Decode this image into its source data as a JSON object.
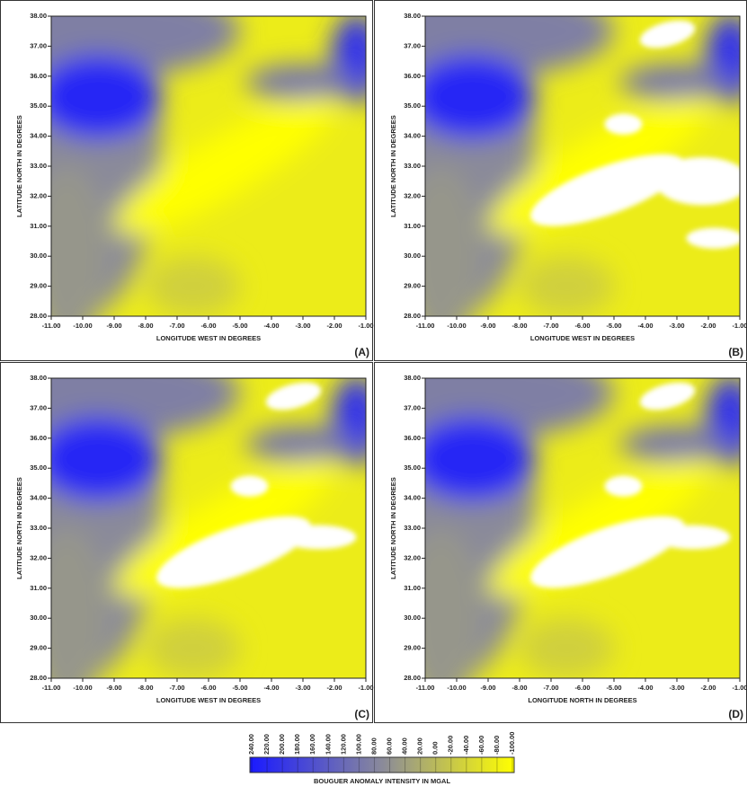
{
  "chart_data": [
    {
      "type": "contour",
      "panel_label": "(A)",
      "x_label": "LONGITUDE WEST IN DEGREES",
      "y_label": "LATITUDE NORTH IN DEGREES",
      "xlim": [
        -11,
        -1
      ],
      "ylim": [
        28,
        38
      ],
      "xticks": [
        {
          "value": -11,
          "label": "-11.00"
        },
        {
          "value": -10,
          "label": "-10.00"
        },
        {
          "value": -9,
          "label": "-9.00"
        },
        {
          "value": -8,
          "label": "-8.00"
        },
        {
          "value": -7,
          "label": "-7.00"
        },
        {
          "value": -6,
          "label": "-6.00"
        },
        {
          "value": -5,
          "label": "-5.00"
        },
        {
          "value": -4,
          "label": "-4.00"
        },
        {
          "value": -3,
          "label": "-3.00"
        },
        {
          "value": -2,
          "label": "-2.00"
        },
        {
          "value": -1,
          "label": "-1.00"
        }
      ],
      "yticks": [
        {
          "value": 28,
          "label": "28.00"
        },
        {
          "value": 29,
          "label": "29.00"
        },
        {
          "value": 30,
          "label": "30.00"
        },
        {
          "value": 31,
          "label": "31.00"
        },
        {
          "value": 32,
          "label": "32.00"
        },
        {
          "value": 33,
          "label": "33.00"
        },
        {
          "value": 34,
          "label": "34.00"
        },
        {
          "value": 35,
          "label": "35.00"
        },
        {
          "value": 36,
          "label": "36.00"
        },
        {
          "value": 37,
          "label": "37.00"
        },
        {
          "value": 38,
          "label": "38.00"
        }
      ]
    },
    {
      "type": "contour",
      "panel_label": "(B)",
      "x_label": "LONGITUDE WEST IN DEGREES",
      "y_label": "LATITUDE NORTH IN DEGREES",
      "xlim": [
        -11,
        -1
      ],
      "ylim": [
        28,
        38
      ],
      "xticks": [
        {
          "value": -11,
          "label": "-11.00"
        },
        {
          "value": -10,
          "label": "-10.00"
        },
        {
          "value": -9,
          "label": "-9.00"
        },
        {
          "value": -8,
          "label": "-8.00"
        },
        {
          "value": -7,
          "label": "-7.00"
        },
        {
          "value": -6,
          "label": "-6.00"
        },
        {
          "value": -5,
          "label": "-5.00"
        },
        {
          "value": -4,
          "label": "-4.00"
        },
        {
          "value": -3,
          "label": "-3.00"
        },
        {
          "value": -2,
          "label": "-2.00"
        },
        {
          "value": -1,
          "label": "-1.00"
        }
      ],
      "yticks": [
        {
          "value": 28,
          "label": "28.00"
        },
        {
          "value": 29,
          "label": "29.00"
        },
        {
          "value": 30,
          "label": "30.00"
        },
        {
          "value": 31,
          "label": "31.00"
        },
        {
          "value": 32,
          "label": "32.00"
        },
        {
          "value": 33,
          "label": "33.00"
        },
        {
          "value": 34,
          "label": "34.00"
        },
        {
          "value": 35,
          "label": "35.00"
        },
        {
          "value": 36,
          "label": "36.00"
        },
        {
          "value": 37,
          "label": "37.00"
        },
        {
          "value": 38,
          "label": "38.00"
        }
      ]
    },
    {
      "type": "contour",
      "panel_label": "(C)",
      "x_label": "LONGITUDE WEST IN DEGREES",
      "y_label": "LATITUDE NORTH IN DEGREES",
      "xlim": [
        -11,
        -1
      ],
      "ylim": [
        28,
        38
      ],
      "xticks": [
        {
          "value": -11,
          "label": "-11.00"
        },
        {
          "value": -10,
          "label": "-10.00"
        },
        {
          "value": -9,
          "label": "-9.00"
        },
        {
          "value": -8,
          "label": "-8.00"
        },
        {
          "value": -7,
          "label": "-7.00"
        },
        {
          "value": -6,
          "label": "-6.00"
        },
        {
          "value": -5,
          "label": "-5.00"
        },
        {
          "value": -4,
          "label": "-4.00"
        },
        {
          "value": -3,
          "label": "-3.00"
        },
        {
          "value": -2,
          "label": "-2.00"
        },
        {
          "value": -1,
          "label": "-1.00"
        }
      ],
      "yticks": [
        {
          "value": 28,
          "label": "28.00"
        },
        {
          "value": 29,
          "label": "29.00"
        },
        {
          "value": 30,
          "label": "30.00"
        },
        {
          "value": 31,
          "label": "31.00"
        },
        {
          "value": 32,
          "label": "32.00"
        },
        {
          "value": 33,
          "label": "33.00"
        },
        {
          "value": 34,
          "label": "34.00"
        },
        {
          "value": 35,
          "label": "35.00"
        },
        {
          "value": 36,
          "label": "36.00"
        },
        {
          "value": 37,
          "label": "37.00"
        },
        {
          "value": 38,
          "label": "38.00"
        }
      ]
    },
    {
      "type": "contour",
      "panel_label": "(D)",
      "x_label": "LONGITUDE NORTH IN DEGREES",
      "y_label": "LATITUDE NORTH IN DEGREES",
      "xlim": [
        -11,
        -1
      ],
      "ylim": [
        28,
        38
      ],
      "xticks": [
        {
          "value": -11,
          "label": "-11.00"
        },
        {
          "value": -10,
          "label": "-10.00"
        },
        {
          "value": -9,
          "label": "-9.00"
        },
        {
          "value": -8,
          "label": "-8.00"
        },
        {
          "value": -7,
          "label": "-7.00"
        },
        {
          "value": -6,
          "label": "-6.00"
        },
        {
          "value": -5,
          "label": "-5.00"
        },
        {
          "value": -4,
          "label": "-4.00"
        },
        {
          "value": -3,
          "label": "-3.00"
        },
        {
          "value": -2,
          "label": "-2.00"
        },
        {
          "value": -1,
          "label": "-1.00"
        }
      ],
      "yticks": [
        {
          "value": 28,
          "label": "28.00"
        },
        {
          "value": 29,
          "label": "29.00"
        },
        {
          "value": 30,
          "label": "30.00"
        },
        {
          "value": 31,
          "label": "31.00"
        },
        {
          "value": 32,
          "label": "32.00"
        },
        {
          "value": 33,
          "label": "33.00"
        },
        {
          "value": 34,
          "label": "34.00"
        },
        {
          "value": 35,
          "label": "35.00"
        },
        {
          "value": 36,
          "label": "36.00"
        },
        {
          "value": 37,
          "label": "37.00"
        },
        {
          "value": 38,
          "label": "38.00"
        }
      ]
    }
  ],
  "colorbar": {
    "title": "BOUGUER ANOMALY INTENSITY IN MGAL",
    "colors": [
      "#1a1aff",
      "#8a8a9a",
      "#ffff00"
    ],
    "ticks": [
      {
        "value": 240,
        "label": "240.00"
      },
      {
        "value": 220,
        "label": "220.00"
      },
      {
        "value": 200,
        "label": "200.00"
      },
      {
        "value": 180,
        "label": "180.00"
      },
      {
        "value": 160,
        "label": "160.00"
      },
      {
        "value": 140,
        "label": "140.00"
      },
      {
        "value": 120,
        "label": "120.00"
      },
      {
        "value": 100,
        "label": "100.00"
      },
      {
        "value": 80,
        "label": "80.00"
      },
      {
        "value": 60,
        "label": "60.00"
      },
      {
        "value": 40,
        "label": "40.00"
      },
      {
        "value": 20,
        "label": "20.00"
      },
      {
        "value": 0,
        "label": "0.00"
      },
      {
        "value": -20,
        "label": "-20.00"
      },
      {
        "value": -40,
        "label": "-40.00"
      },
      {
        "value": -60,
        "label": "-60.00"
      },
      {
        "value": -80,
        "label": "-80.00"
      },
      {
        "value": -100,
        "label": "-100.00"
      }
    ]
  }
}
